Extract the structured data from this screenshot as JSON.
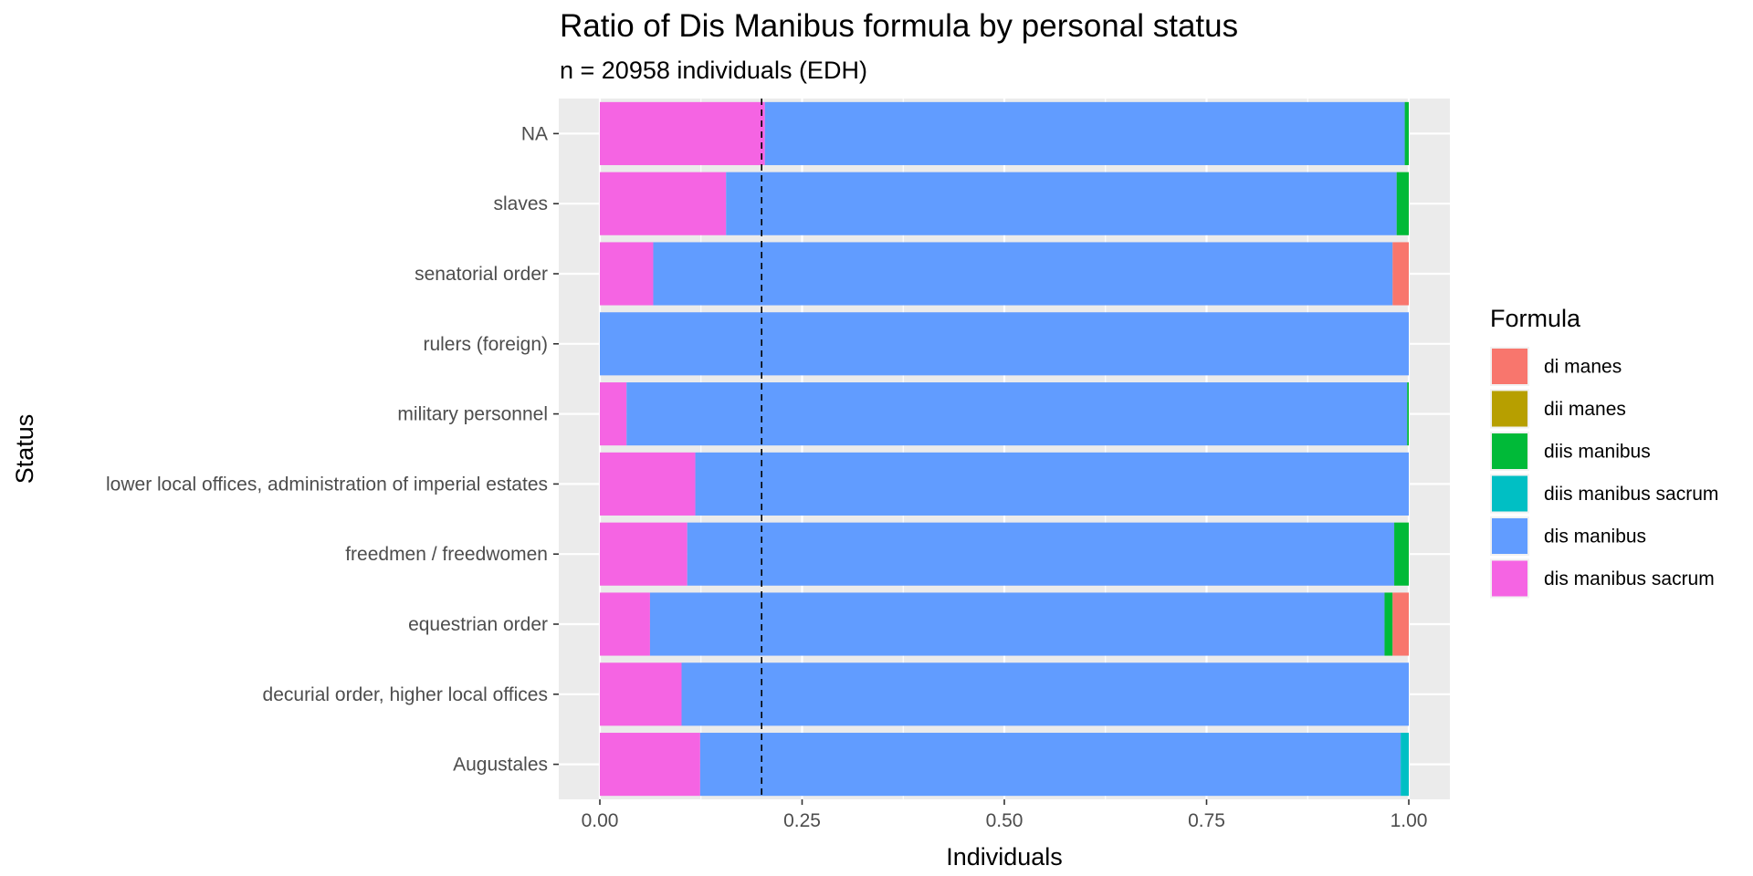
{
  "chart_data": {
    "type": "bar",
    "orientation": "horizontal",
    "stacked": true,
    "title": "Ratio of Dis Manibus formula by personal status",
    "subtitle": "n = 20958 individuals (EDH)",
    "xlabel": "Individuals",
    "ylabel": "Status",
    "xlim": [
      0,
      1
    ],
    "x_ticks": [
      "0.00",
      "0.25",
      "0.50",
      "0.75",
      "1.00"
    ],
    "x_tick_values": [
      0,
      0.25,
      0.5,
      0.75,
      1.0
    ],
    "reference_line": {
      "x": 0.2,
      "style": "dashed"
    },
    "categories": [
      "Augustales",
      "decurial order, higher local offices",
      "equestrian order",
      "freedmen / freedwomen",
      "lower local offices, administration of imperial estates",
      "military personnel",
      "rulers (foreign)",
      "senatorial order",
      "slaves",
      "NA"
    ],
    "series": [
      {
        "name": "dis manibus sacrum",
        "color": "#F564E3",
        "values": [
          0.124,
          0.101,
          0.062,
          0.108,
          0.118,
          0.033,
          0.0,
          0.066,
          0.156,
          0.204
        ]
      },
      {
        "name": "dis manibus",
        "color": "#619CFF",
        "values": [
          0.866,
          0.899,
          0.908,
          0.874,
          0.882,
          0.965,
          1.0,
          0.914,
          0.829,
          0.791
        ]
      },
      {
        "name": "diis manibus sacrum",
        "color": "#00BFC4",
        "values": [
          0.01,
          0.0,
          0.0,
          0.0,
          0.0,
          0.0,
          0.0,
          0.0,
          0.0,
          0.0
        ]
      },
      {
        "name": "diis manibus",
        "color": "#00BA38",
        "values": [
          0.0,
          0.0,
          0.01,
          0.018,
          0.0,
          0.002,
          0.0,
          0.0,
          0.015,
          0.005
        ]
      },
      {
        "name": "dii manes",
        "color": "#B79F00",
        "values": [
          0.0,
          0.0,
          0.0,
          0.0,
          0.0,
          0.0,
          0.0,
          0.0,
          0.0,
          0.0
        ]
      },
      {
        "name": "di manes",
        "color": "#F8766D",
        "values": [
          0.0,
          0.0,
          0.02,
          0.0,
          0.0,
          0.0,
          0.0,
          0.02,
          0.0,
          0.0
        ]
      }
    ],
    "legend": {
      "title": "Formula",
      "position": "right",
      "entries": [
        {
          "name": "di manes",
          "color": "#F8766D"
        },
        {
          "name": "dii manes",
          "color": "#B79F00"
        },
        {
          "name": "diis manibus",
          "color": "#00BA38"
        },
        {
          "name": "diis manibus sacrum",
          "color": "#00BFC4"
        },
        {
          "name": "dis manibus",
          "color": "#619CFF"
        },
        {
          "name": "dis manibus sacrum",
          "color": "#F564E3"
        }
      ]
    },
    "grid": true,
    "panel_background": "#EBEBEB"
  }
}
